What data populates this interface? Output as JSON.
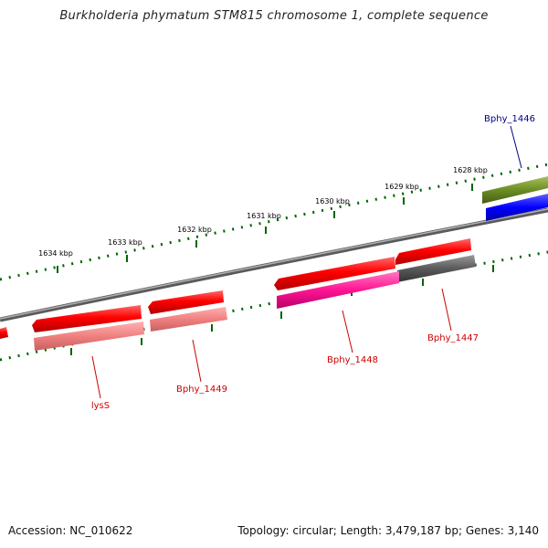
{
  "title": "Burkholderia phymatum STM815 chromosome 1, complete sequence",
  "footer": {
    "accession": "Accession: NC_010622",
    "stats": "Topology: circular; Length: 3,479,187 bp; Genes: 3,140"
  },
  "ticks": [
    "1628 kbp",
    "1629 kbp",
    "1630 kbp",
    "1631 kbp",
    "1632 kbp",
    "1633 kbp",
    "1634 kbp"
  ],
  "genes": [
    {
      "label": "Bphy_1446",
      "color": "#00008b"
    },
    {
      "label": "Bphy_1447",
      "color": "#cc0000"
    },
    {
      "label": "Bphy_1448",
      "color": "#cc0000"
    },
    {
      "label": "Bphy_1449",
      "color": "#cc0000"
    },
    {
      "label": "lysS",
      "color": "#cc0000"
    }
  ],
  "colors": {
    "cds_forward": "#ff0000",
    "rna_light": "#f08080",
    "rna_magenta": "#ff1493",
    "gray_feature": "#555555",
    "olive_feature": "#6b8e23",
    "blue_feature": "#0000ff",
    "backbone": "#808080",
    "tick_green": "#006400"
  }
}
